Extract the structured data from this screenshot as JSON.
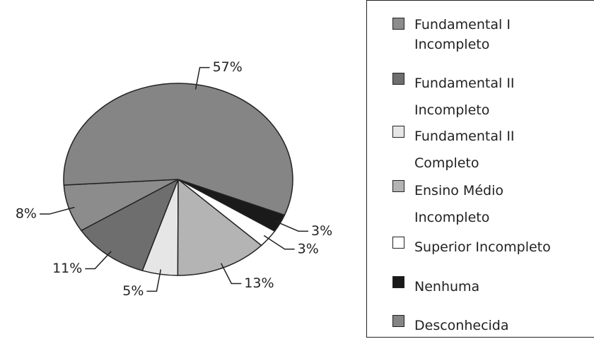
{
  "chart_data": {
    "type": "pie",
    "categories": [
      "Fundamental I Incompleto",
      "Fundamental II Incompleto",
      "Fundamental II Completo",
      "Ensino Médio Incompleto",
      "Superior Incompleto",
      "Nenhuma",
      "Desconhecida"
    ],
    "values": [
      8,
      11,
      5,
      13,
      3,
      3,
      57
    ],
    "value_labels": [
      "8%",
      "11%",
      "5%",
      "13%",
      "3%",
      "3%",
      "57%"
    ],
    "colors": [
      "#8c8c8c",
      "#6e6e6e",
      "#e6e6e6",
      "#b4b4b4",
      "#ffffff",
      "#1a1a1a",
      "#858585"
    ]
  }
}
